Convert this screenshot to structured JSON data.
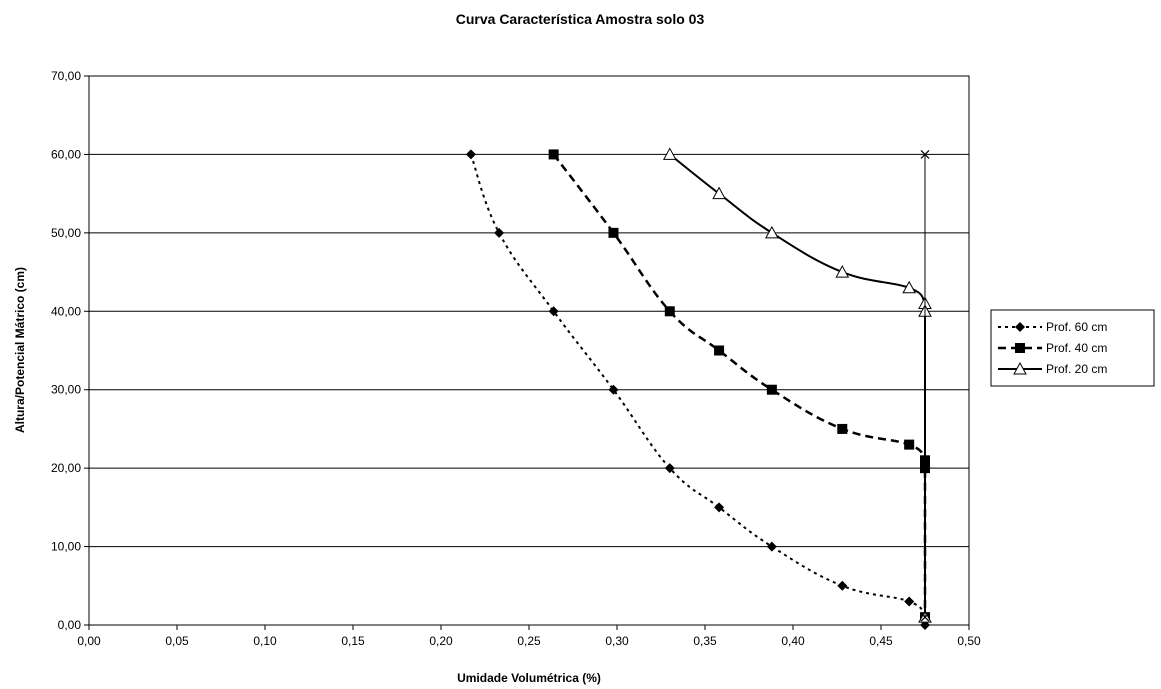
{
  "chart_data": {
    "type": "line",
    "title": "Curva Característica Amostra solo 03",
    "xlabel": "Umidade Volumétrica (%)",
    "ylabel": "Altura/Potencial Mátrico (cm)",
    "xlim": [
      0,
      0.5
    ],
    "ylim": [
      0,
      70
    ],
    "x_ticks": [
      "0,00",
      "0,05",
      "0,10",
      "0,15",
      "0,20",
      "0,25",
      "0,30",
      "0,35",
      "0,40",
      "0,45",
      "0,50"
    ],
    "y_ticks": [
      "0,00",
      "10,00",
      "20,00",
      "30,00",
      "40,00",
      "50,00",
      "60,00",
      "70,00"
    ],
    "grid": "horizontal",
    "legend_position": "right",
    "series": [
      {
        "name": "Prof. 60 cm",
        "marker": "diamond",
        "line": "dotted",
        "x": [
          0.217,
          0.233,
          0.264,
          0.298,
          0.33,
          0.358,
          0.388,
          0.428,
          0.466,
          0.475,
          0.475
        ],
        "y": [
          60,
          50,
          40,
          30,
          20,
          15,
          10,
          5,
          3,
          1,
          0
        ]
      },
      {
        "name": "Prof. 40 cm",
        "marker": "square",
        "line": "dashed",
        "x": [
          0.264,
          0.298,
          0.33,
          0.358,
          0.388,
          0.428,
          0.466,
          0.475,
          0.475,
          0.475
        ],
        "y": [
          60,
          50,
          40,
          35,
          30,
          25,
          23,
          21,
          20,
          1
        ]
      },
      {
        "name": "Prof. 20 cm",
        "marker": "triangle",
        "line": "solid",
        "x": [
          0.33,
          0.358,
          0.388,
          0.428,
          0.466,
          0.475,
          0.475,
          0.475
        ],
        "y": [
          60,
          55,
          50,
          45,
          43,
          41,
          40,
          1
        ]
      },
      {
        "name": "",
        "marker": "x",
        "line": "solid-thin",
        "x": [
          0.475,
          0.475
        ],
        "y": [
          60,
          1
        ]
      }
    ]
  }
}
